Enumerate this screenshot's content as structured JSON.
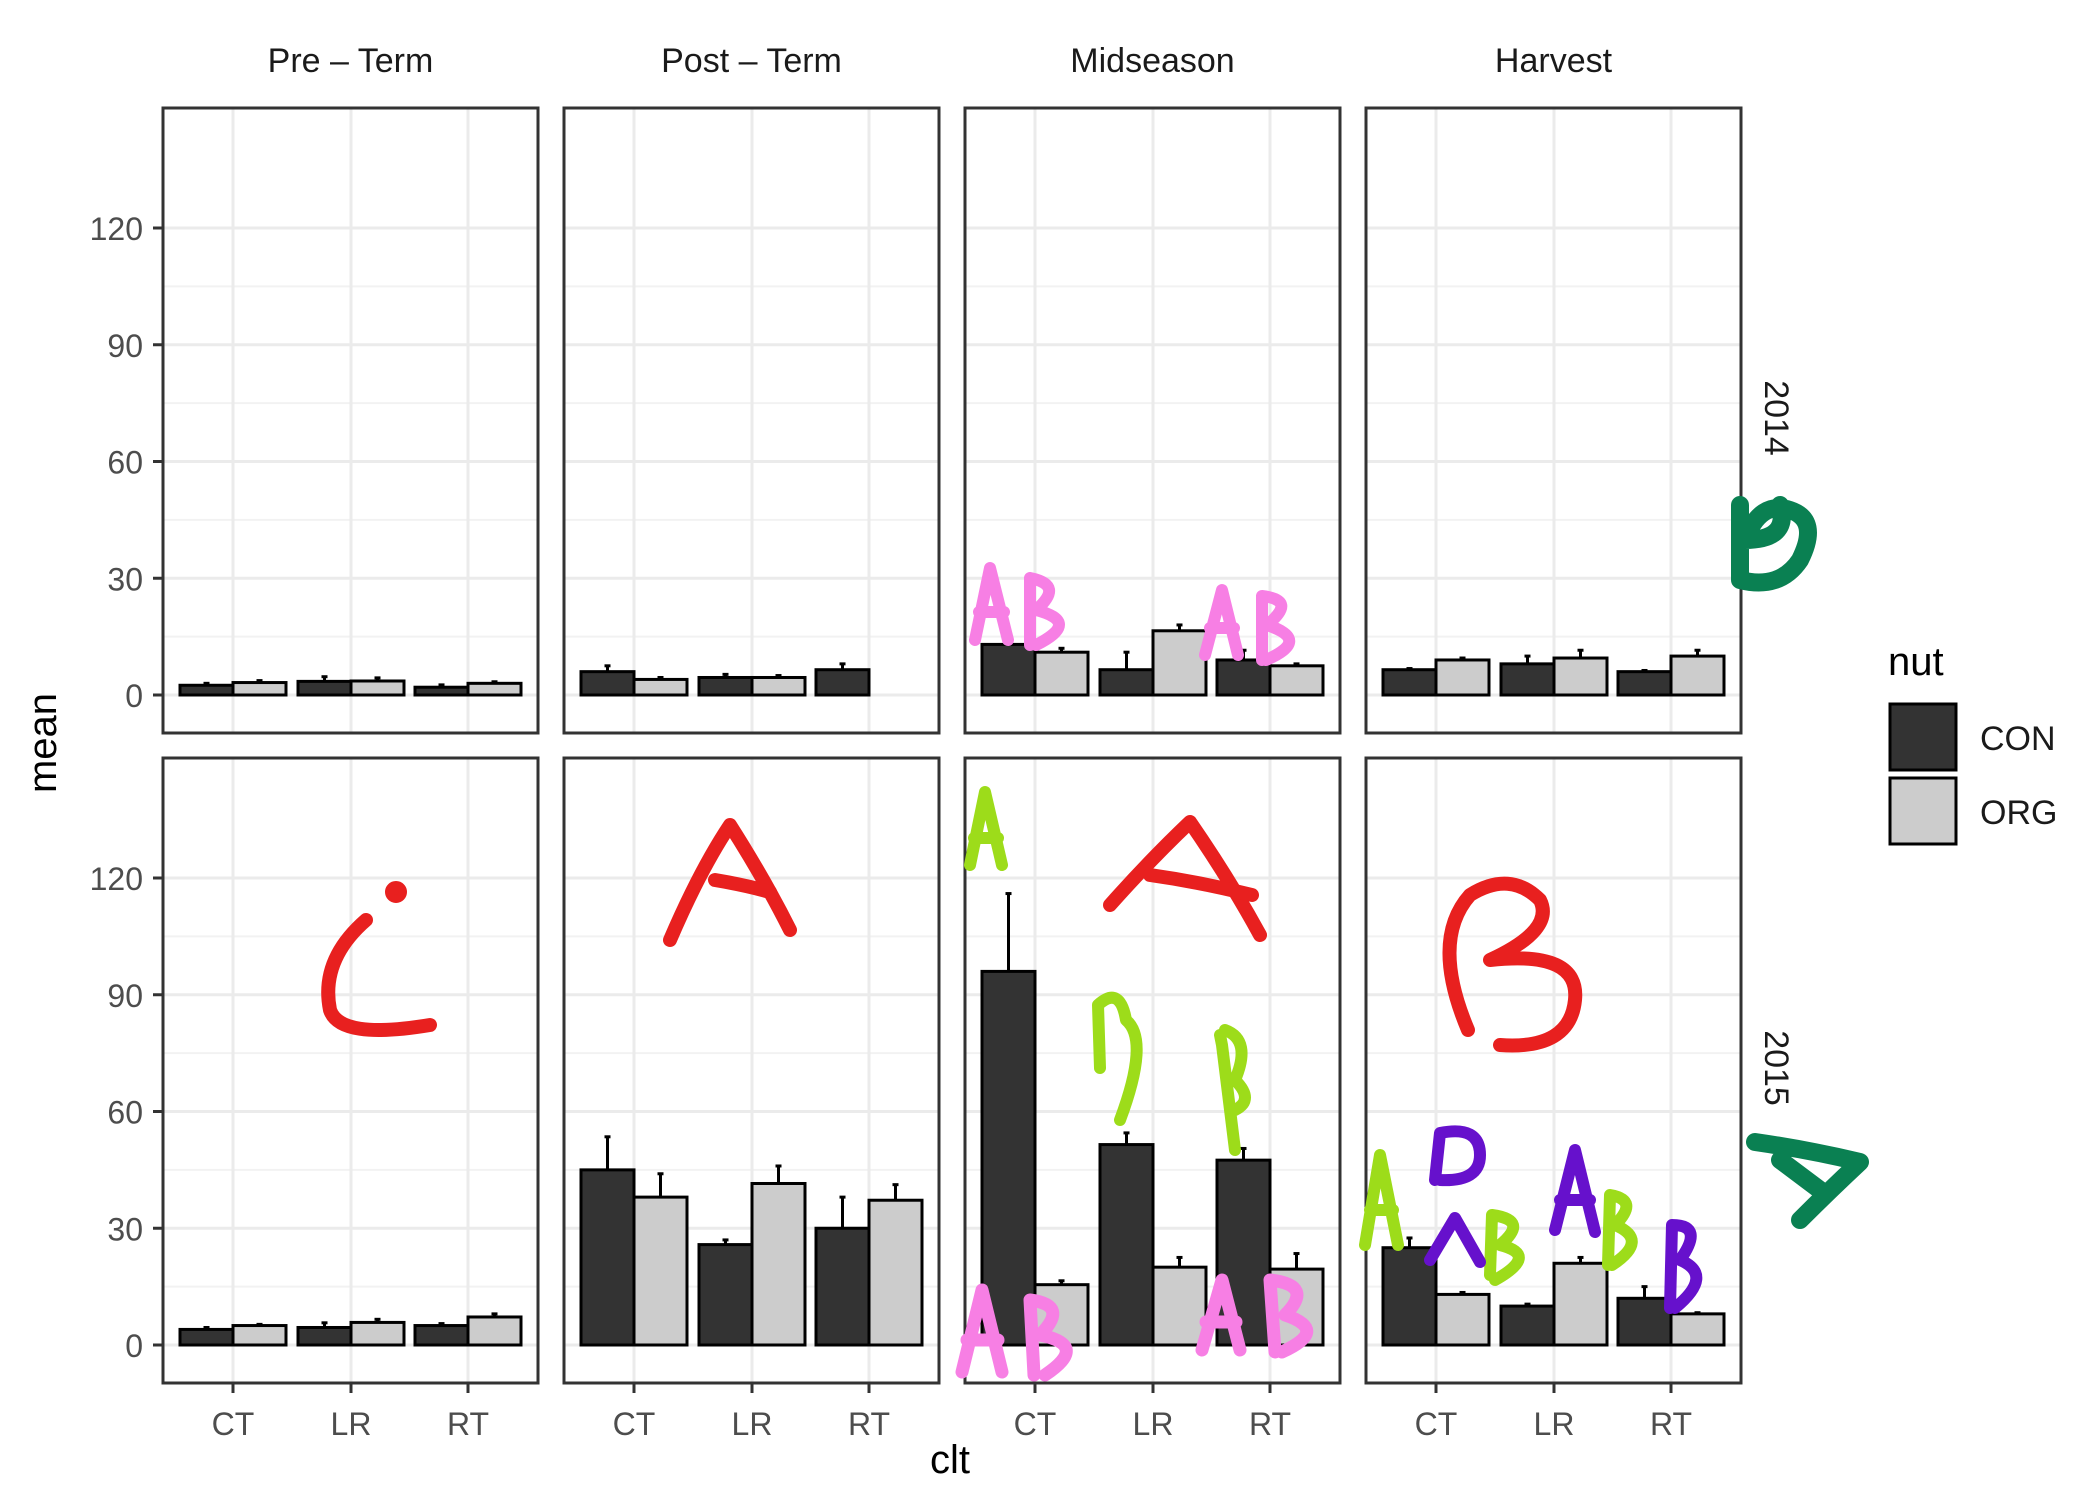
{
  "chart_data": {
    "type": "bar",
    "xlabel": "clt",
    "ylabel": "mean",
    "ylim": [
      0,
      120
    ],
    "y_ticks": [
      "0",
      "30",
      "60",
      "90",
      "120"
    ],
    "y_tick_values": [
      0,
      30,
      60,
      90,
      120
    ],
    "categories": [
      "CT",
      "LR",
      "RT"
    ],
    "facet_cols": [
      "Pre – Term",
      "Post – Term",
      "Midseason",
      "Harvest"
    ],
    "facet_rows": [
      "2014",
      "2015"
    ],
    "legend": {
      "title": "nut",
      "placement": "right",
      "entries": [
        "CON",
        "ORG"
      ]
    },
    "colors": {
      "CON": "#333333",
      "ORG": "#cccccc"
    },
    "panels": [
      {
        "year": "2014",
        "stage": "Pre – Term",
        "CON": [
          2.5,
          3.5,
          2.0
        ],
        "ORG": [
          3.2,
          3.6,
          3.0
        ],
        "CON_err": [
          0.5,
          1.2,
          0.6
        ],
        "ORG_err": [
          0.5,
          0.8,
          0.4
        ]
      },
      {
        "year": "2014",
        "stage": "Post – Term",
        "CON": [
          6.0,
          4.5,
          6.5
        ],
        "ORG": [
          4.0,
          4.5,
          null
        ],
        "CON_err": [
          1.5,
          0.8,
          1.5
        ],
        "ORG_err": [
          0.5,
          0.5,
          null
        ]
      },
      {
        "year": "2014",
        "stage": "Midseason",
        "CON": [
          13.0,
          6.5,
          9.0
        ],
        "ORG": [
          11.0,
          16.5,
          7.5
        ],
        "CON_err": [
          2.0,
          4.5,
          2.5
        ],
        "ORG_err": [
          1.0,
          1.5,
          0.5
        ]
      },
      {
        "year": "2014",
        "stage": "Harvest",
        "CON": [
          6.5,
          8.0,
          6.0
        ],
        "ORG": [
          9.0,
          9.5,
          10.0
        ],
        "CON_err": [
          0.3,
          2.0,
          0.3
        ],
        "ORG_err": [
          0.5,
          2.0,
          1.5
        ]
      },
      {
        "year": "2015",
        "stage": "Pre – Term",
        "CON": [
          4.0,
          4.5,
          5.0
        ],
        "ORG": [
          5.0,
          5.8,
          7.2
        ],
        "CON_err": [
          0.5,
          1.2,
          0.5
        ],
        "ORG_err": [
          0.3,
          0.8,
          0.8
        ]
      },
      {
        "year": "2015",
        "stage": "Post – Term",
        "CON": [
          45.0,
          25.8,
          30.0
        ],
        "ORG": [
          38.0,
          41.5,
          37.2
        ],
        "CON_err": [
          8.5,
          1.2,
          8.0
        ],
        "ORG_err": [
          6.0,
          4.5,
          4.0
        ]
      },
      {
        "year": "2015",
        "stage": "Midseason",
        "CON": [
          96.0,
          51.5,
          47.5
        ],
        "ORG": [
          15.5,
          20.0,
          19.5
        ],
        "CON_err": [
          20.0,
          3.0,
          3.0
        ],
        "ORG_err": [
          1.0,
          2.5,
          4.0
        ]
      },
      {
        "year": "2015",
        "stage": "Harvest",
        "CON": [
          25.0,
          10.0,
          12.0
        ],
        "ORG": [
          13.0,
          21.0,
          8.0
        ],
        "CON_err": [
          2.5,
          0.5,
          3.0
        ],
        "ORG_err": [
          0.5,
          1.5,
          0.3
        ]
      }
    ],
    "annotations": {
      "letters": [
        "AB",
        "AB",
        "C",
        "A",
        "A",
        "B",
        "A",
        "B",
        "B",
        "AB",
        "AB",
        "A",
        "B",
        "B",
        "AB",
        "A",
        "B",
        "B",
        "A",
        "B",
        "A"
      ],
      "colors": {
        "red": "#e8201f",
        "pink": "#f77fe4",
        "green": "#9ddc1a",
        "purple": "#6611cc",
        "dark_green": "#0a8052"
      }
    }
  }
}
